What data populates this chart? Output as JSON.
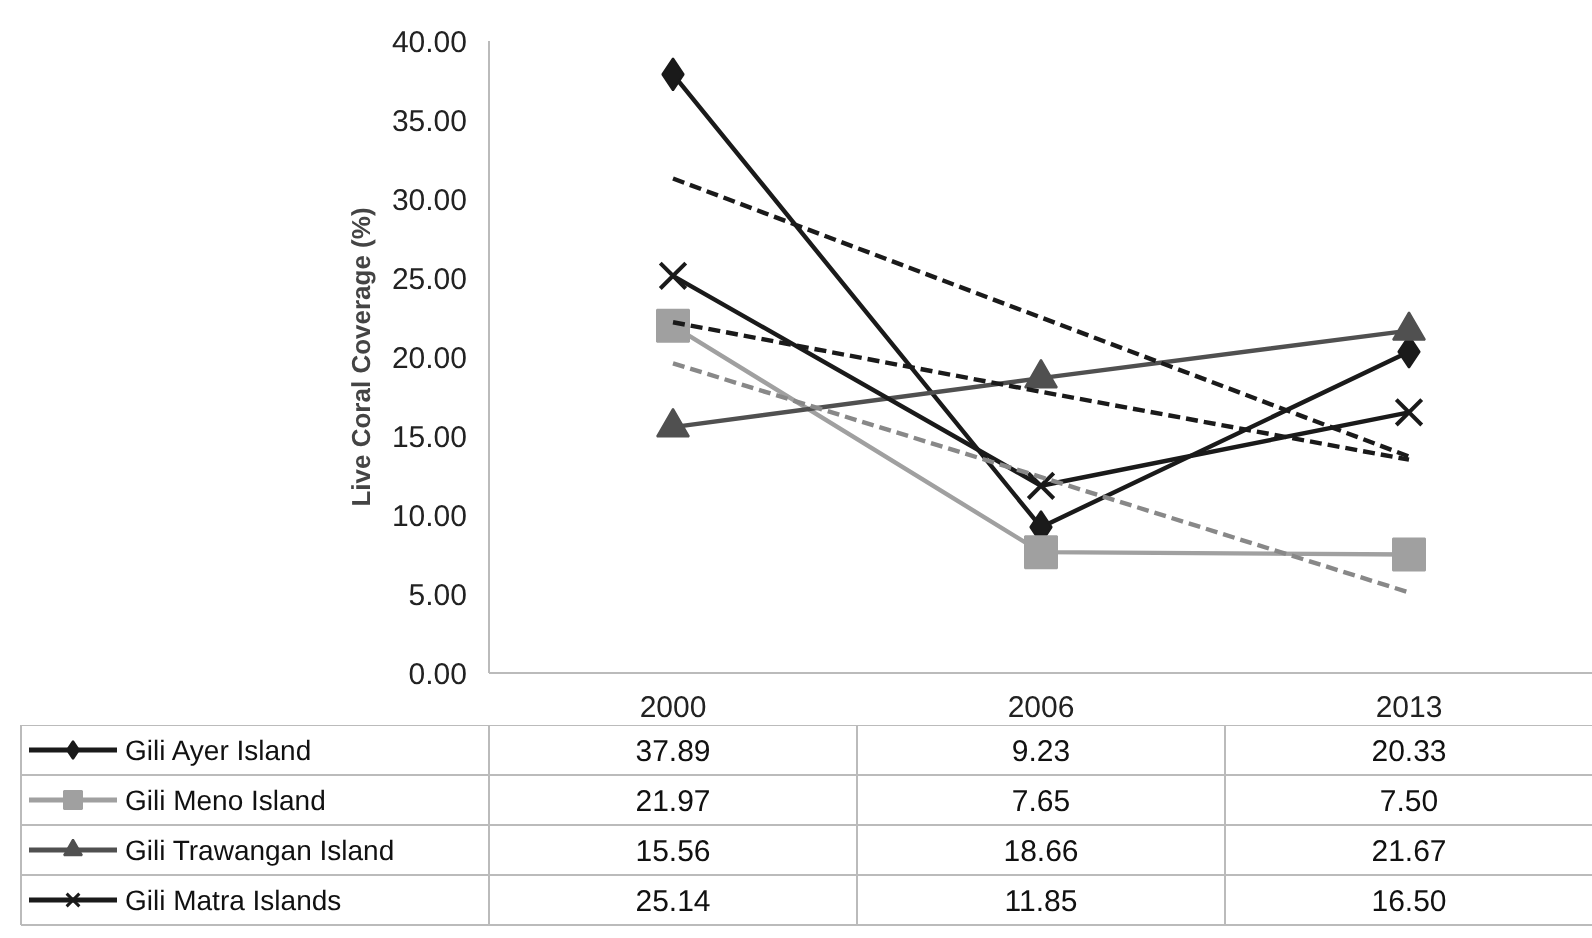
{
  "chart_data": {
    "type": "line",
    "ylabel": "Live Coral Coverage (%)",
    "categories": [
      "2000",
      "2006",
      "2013"
    ],
    "ylim": [
      0,
      40
    ],
    "yticks": [
      {
        "value": 0,
        "label": "0.00"
      },
      {
        "value": 5,
        "label": "5.00"
      },
      {
        "value": 10,
        "label": "10.00"
      },
      {
        "value": 15,
        "label": "15.00"
      },
      {
        "value": 20,
        "label": "20.00"
      },
      {
        "value": 25,
        "label": "25.00"
      },
      {
        "value": 30,
        "label": "30.00"
      },
      {
        "value": 35,
        "label": "35.00"
      },
      {
        "value": 40,
        "label": "40.00"
      }
    ],
    "grid": false,
    "legend": "bottom",
    "series": [
      {
        "name": "Gili Ayer Island",
        "color": "#1a1a1a",
        "marker": "diamond",
        "values": [
          37.89,
          9.23,
          20.33
        ],
        "value_labels": [
          "37.89",
          "9.23",
          "20.33"
        ]
      },
      {
        "name": "Gili Meno Island",
        "color": "#a0a0a0",
        "marker": "square",
        "values": [
          21.97,
          7.65,
          7.5
        ],
        "value_labels": [
          "21.97",
          "7.65",
          "7.50"
        ]
      },
      {
        "name": "Gili Trawangan Island",
        "color": "#505050",
        "marker": "triangle",
        "values": [
          15.56,
          18.66,
          21.67
        ],
        "value_labels": [
          "15.56",
          "18.66",
          "21.67"
        ]
      },
      {
        "name": "Gili Matra Islands",
        "color": "#1a1a1a",
        "marker": "cross",
        "values": [
          25.14,
          11.85,
          16.5
        ],
        "value_labels": [
          "25.14",
          "11.85",
          "16.50"
        ]
      },
      {
        "color": "#1a1a1a",
        "line_style": "dashed",
        "values": [
          31.3,
          22.5,
          13.7
        ]
      },
      {
        "color": "#1a1a1a",
        "line_style": "dashed",
        "values": [
          22.2,
          17.8,
          13.5
        ]
      },
      {
        "color": "#888888",
        "line_style": "dashed",
        "values": [
          19.6,
          12.4,
          5.1
        ]
      }
    ]
  }
}
